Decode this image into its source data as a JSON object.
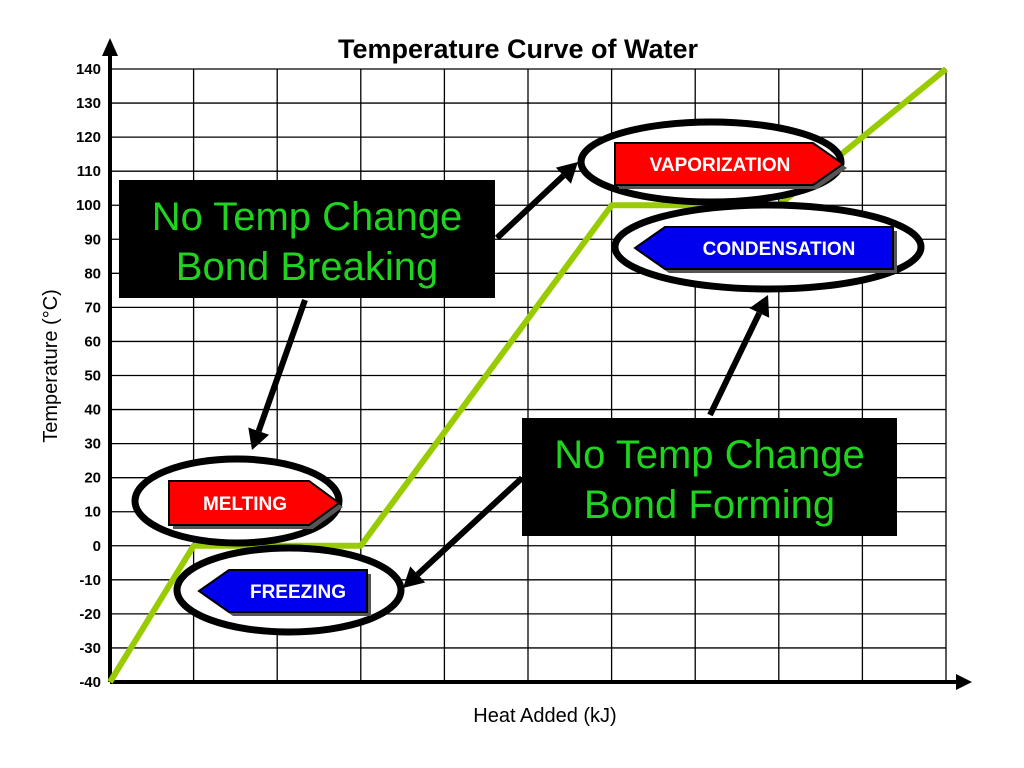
{
  "chart_data": {
    "type": "line",
    "title": "Temperature Curve of Water",
    "xlabel": "Heat Added (kJ)",
    "ylabel": "Temperature (°C)",
    "ylim": [
      -40,
      140
    ],
    "yticks": [
      "140",
      "130",
      "120",
      "110",
      "100",
      "90",
      "80",
      "70",
      "60",
      "50",
      "40",
      "30",
      "20",
      "10",
      "0",
      "-10",
      "-20",
      "-30",
      "-40"
    ],
    "grid": true,
    "series": [
      {
        "color": "#99cc00",
        "points": [
          [
            0,
            -40
          ],
          [
            1,
            0
          ],
          [
            3,
            0
          ],
          [
            6,
            100
          ],
          [
            8,
            100
          ],
          [
            10,
            140
          ]
        ]
      }
    ],
    "phase_labels": [
      {
        "id": "vaporization",
        "text": "VAPORIZATION",
        "color": "#ff0000",
        "direction": "right"
      },
      {
        "id": "condensation",
        "text": "CONDENSATION",
        "color": "#0000ee",
        "direction": "left"
      },
      {
        "id": "melting",
        "text": "MELTING",
        "color": "#ff0000",
        "direction": "right"
      },
      {
        "id": "freezing",
        "text": "FREEZING",
        "color": "#0000ee",
        "direction": "left"
      }
    ],
    "annotations": [
      {
        "id": "bond-breaking",
        "lines": [
          "No Temp Change",
          "Bond Breaking"
        ],
        "color": "#1fd31f",
        "background": "#000000"
      },
      {
        "id": "bond-forming",
        "lines": [
          "No Temp Change",
          "Bond Forming"
        ],
        "color": "#1fd31f",
        "background": "#000000"
      }
    ]
  }
}
